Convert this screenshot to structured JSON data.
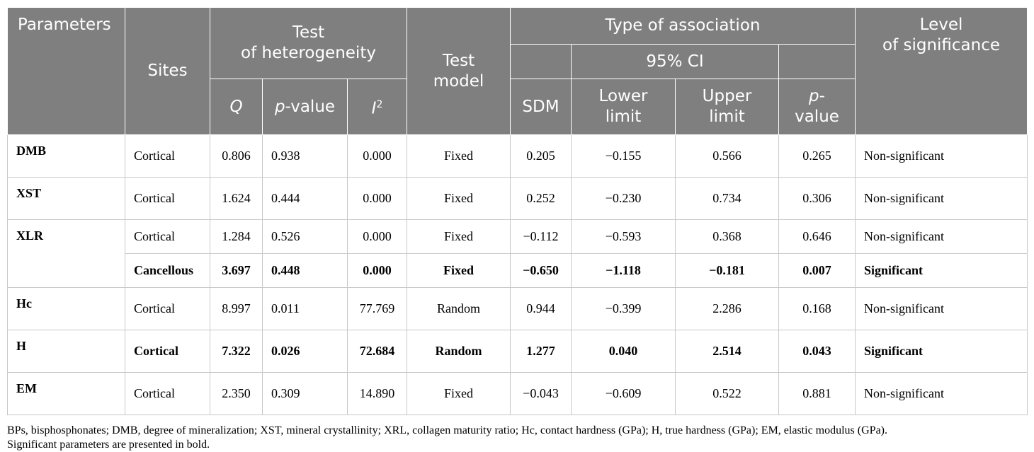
{
  "header": {
    "parameters": "Parameters",
    "sites": "Sites",
    "heterogeneity": "Test\nof heterogeneity",
    "q": "Q",
    "p_italic": "p",
    "p_value_suffix": "-value",
    "i_italic": "I",
    "i_sup": "2",
    "test_model": "Test\nmodel",
    "type_of_association": "Type of association",
    "ci": "95% CI",
    "sdm": "SDM",
    "lower_limit": "Lower\nlimit",
    "upper_limit": "Upper\nlimit",
    "p2_italic": "p",
    "p2_suffix": "-\nvalue",
    "level": "Level\nof significance"
  },
  "rows": [
    {
      "param": "DMB",
      "site": "Cortical",
      "q": "0.806",
      "p": "0.938",
      "i2": "0.000",
      "model": "Fixed",
      "sdm": "0.205",
      "lower": "−0.155",
      "upper": "0.566",
      "pval": "0.265",
      "level": "Non-significant"
    },
    {
      "param": "XST",
      "site": "Cortical",
      "q": "1.624",
      "p": "0.444",
      "i2": "0.000",
      "model": "Fixed",
      "sdm": "0.252",
      "lower": "−0.230",
      "upper": "0.734",
      "pval": "0.306",
      "level": "Non-significant"
    },
    {
      "param": "XLR",
      "site": "Cortical",
      "q": "1.284",
      "p": "0.526",
      "i2": "0.000",
      "model": "Fixed",
      "sdm": "−0.112",
      "lower": "−0.593",
      "upper": "0.368",
      "pval": "0.646",
      "level": "Non-significant"
    },
    {
      "param": "",
      "site": "Cancellous",
      "q": "3.697",
      "p": "0.448",
      "i2": "0.000",
      "model": "Fixed",
      "sdm": "−0.650",
      "lower": "−1.118",
      "upper": "−0.181",
      "pval": "0.007",
      "level": "Significant"
    },
    {
      "param": "Hc",
      "site": "Cortical",
      "q": "8.997",
      "p": "0.011",
      "i2": "77.769",
      "model": "Random",
      "sdm": "0.944",
      "lower": "−0.399",
      "upper": "2.286",
      "pval": "0.168",
      "level": "Non-significant"
    },
    {
      "param": "H",
      "site": "Cortical",
      "q": "7.322",
      "p": "0.026",
      "i2": "72.684",
      "model": "Random",
      "sdm": "1.277",
      "lower": "0.040",
      "upper": "2.514",
      "pval": "0.043",
      "level": "Significant"
    },
    {
      "param": "EM",
      "site": "Cortical",
      "q": "2.350",
      "p": "0.309",
      "i2": "14.890",
      "model": "Fixed",
      "sdm": "−0.043",
      "lower": "−0.609",
      "upper": "0.522",
      "pval": "0.881",
      "level": "Non-significant"
    }
  ],
  "footnote": {
    "line1": "BPs, bisphosphonates; DMB, degree of mineralization; XST, mineral crystallinity; XRL, collagen maturity ratio; Hc, contact hardness (GPa); H, true hardness (GPa); EM, elastic modulus (GPa).",
    "line2": "Significant parameters are presented in bold."
  }
}
